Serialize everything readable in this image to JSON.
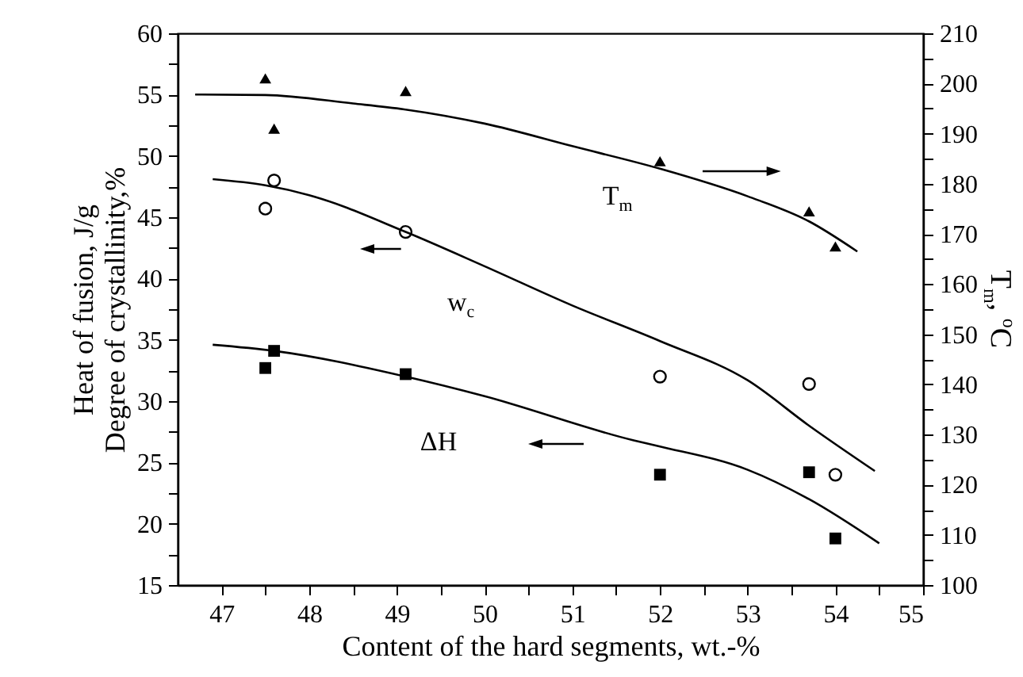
{
  "chart_data": {
    "type": "scatter",
    "xlabel": "Content of the hard segments, wt.-%",
    "ylabel": "Heat of fusion, J/g\nDegree of crystallinity,%",
    "y2label": "T$_{m}$, $^{o}$C",
    "x": [
      47.5,
      47.6,
      49.1,
      52,
      53.7,
      54
    ],
    "xlim": [
      46.5,
      55
    ],
    "xticks": [
      47,
      {
        "value": 47.5,
        "label": null
      },
      48,
      {
        "value": 48.5,
        "label": null
      },
      49,
      {
        "value": 49.5,
        "label": null
      },
      50,
      {
        "value": 50.5,
        "label": null
      },
      51,
      {
        "value": 51.5,
        "label": null
      },
      52,
      {
        "value": 52.5,
        "label": null
      },
      53,
      {
        "value": 53.5,
        "label": null
      },
      54,
      {
        "value": 54.5,
        "label": null
      },
      55
    ],
    "ylim": [
      15,
      60
    ],
    "yticks": [
      15,
      {
        "value": 17.5,
        "label": null
      },
      20,
      {
        "value": 22.5,
        "label": null
      },
      25,
      {
        "value": 27.5,
        "label": null
      },
      30,
      {
        "value": 32.5,
        "label": null
      },
      35,
      {
        "value": 37.5,
        "label": null
      },
      40,
      {
        "value": 42.5,
        "label": null
      },
      45,
      {
        "value": 47.5,
        "label": null
      },
      50,
      {
        "value": 52.5,
        "label": null
      },
      55,
      {
        "value": 57.5,
        "label": null
      },
      60
    ],
    "y2lim": [
      100,
      210
    ],
    "y2ticks": [
      100,
      {
        "value": 105,
        "label": null
      },
      110,
      {
        "value": 115,
        "label": null
      },
      120,
      {
        "value": 125,
        "label": null
      },
      130,
      {
        "value": 135,
        "label": null
      },
      140,
      {
        "value": 145,
        "label": null
      },
      150,
      {
        "value": 155,
        "label": null
      },
      160,
      {
        "value": 165,
        "label": null
      },
      170,
      {
        "value": 175,
        "label": null
      },
      180,
      {
        "value": 185,
        "label": null
      },
      190,
      {
        "value": 195,
        "label": null
      },
      200,
      {
        "value": 205,
        "label": null
      },
      210
    ],
    "grid": false,
    "series": [
      {
        "marker": "square",
        "color": "#000000",
        "values": [
          32.7,
          34.1,
          32.2,
          24,
          24.2,
          18.8
        ]
      },
      {
        "marker": "circle",
        "color": "#000000",
        "values": [
          45.7,
          48,
          43.8,
          32,
          31.4,
          24
        ]
      },
      {
        "marker": "triangle",
        "color": "#000000",
        "axis": "y2",
        "values": [
          201,
          191,
          198.5,
          184.5,
          174.5,
          167.5
        ]
      },
      {
        "type": "line",
        "color": "#000000",
        "line_style": "solid",
        "x": [
          46.9,
          47.6,
          49.1,
          50,
          51.7,
          52,
          53,
          53.7,
          54.5
        ],
        "values": [
          34.6,
          34.1,
          32,
          30.4,
          26.8,
          26.3,
          24.4,
          22,
          18.4
        ]
      },
      {
        "type": "line",
        "color": "#000000",
        "line_style": "solid",
        "x": [
          46.9,
          47.5,
          48,
          49.1,
          50,
          51,
          52,
          53,
          53.7,
          54.45
        ],
        "values": [
          48.1,
          47.6,
          46.8,
          43.8,
          41,
          37.8,
          34.9,
          31.7,
          28,
          24.3
        ]
      },
      {
        "type": "line",
        "color": "#000000",
        "line_style": "solid",
        "axis": "y2",
        "x": [
          46.7,
          47.5,
          48.5,
          49.1,
          50,
          51,
          52,
          53,
          53.7,
          54.25
        ],
        "values": [
          197.8,
          197.7,
          196,
          194.8,
          192,
          187.5,
          183,
          177.5,
          172.5,
          166.5
        ]
      }
    ],
    "annotations": [
      "T$_{m}$",
      "w$_{c}$",
      "ΔH"
    ]
  }
}
